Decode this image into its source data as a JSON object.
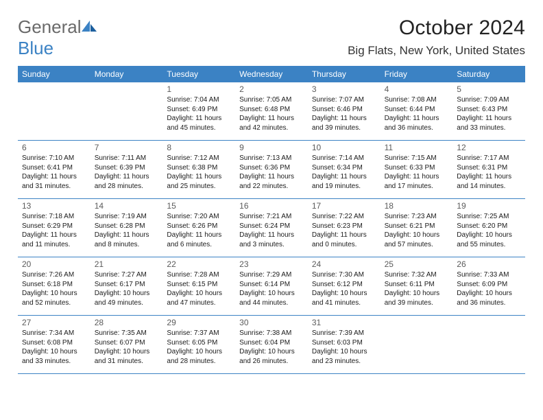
{
  "logo": {
    "text1": "General",
    "text2": "Blue"
  },
  "title": "October 2024",
  "location": "Big Flats, New York, United States",
  "colors": {
    "accent": "#3b82c4",
    "headerText": "#ffffff",
    "bodyText": "#1a1a1a",
    "dayNum": "#5a5a5a",
    "logoGray": "#6a6a6a"
  },
  "dayNames": [
    "Sunday",
    "Monday",
    "Tuesday",
    "Wednesday",
    "Thursday",
    "Friday",
    "Saturday"
  ],
  "weeks": [
    [
      null,
      null,
      {
        "n": "1",
        "sr": "7:04 AM",
        "ss": "6:49 PM",
        "dl": "11 hours and 45 minutes."
      },
      {
        "n": "2",
        "sr": "7:05 AM",
        "ss": "6:48 PM",
        "dl": "11 hours and 42 minutes."
      },
      {
        "n": "3",
        "sr": "7:07 AM",
        "ss": "6:46 PM",
        "dl": "11 hours and 39 minutes."
      },
      {
        "n": "4",
        "sr": "7:08 AM",
        "ss": "6:44 PM",
        "dl": "11 hours and 36 minutes."
      },
      {
        "n": "5",
        "sr": "7:09 AM",
        "ss": "6:43 PM",
        "dl": "11 hours and 33 minutes."
      }
    ],
    [
      {
        "n": "6",
        "sr": "7:10 AM",
        "ss": "6:41 PM",
        "dl": "11 hours and 31 minutes."
      },
      {
        "n": "7",
        "sr": "7:11 AM",
        "ss": "6:39 PM",
        "dl": "11 hours and 28 minutes."
      },
      {
        "n": "8",
        "sr": "7:12 AM",
        "ss": "6:38 PM",
        "dl": "11 hours and 25 minutes."
      },
      {
        "n": "9",
        "sr": "7:13 AM",
        "ss": "6:36 PM",
        "dl": "11 hours and 22 minutes."
      },
      {
        "n": "10",
        "sr": "7:14 AM",
        "ss": "6:34 PM",
        "dl": "11 hours and 19 minutes."
      },
      {
        "n": "11",
        "sr": "7:15 AM",
        "ss": "6:33 PM",
        "dl": "11 hours and 17 minutes."
      },
      {
        "n": "12",
        "sr": "7:17 AM",
        "ss": "6:31 PM",
        "dl": "11 hours and 14 minutes."
      }
    ],
    [
      {
        "n": "13",
        "sr": "7:18 AM",
        "ss": "6:29 PM",
        "dl": "11 hours and 11 minutes."
      },
      {
        "n": "14",
        "sr": "7:19 AM",
        "ss": "6:28 PM",
        "dl": "11 hours and 8 minutes."
      },
      {
        "n": "15",
        "sr": "7:20 AM",
        "ss": "6:26 PM",
        "dl": "11 hours and 6 minutes."
      },
      {
        "n": "16",
        "sr": "7:21 AM",
        "ss": "6:24 PM",
        "dl": "11 hours and 3 minutes."
      },
      {
        "n": "17",
        "sr": "7:22 AM",
        "ss": "6:23 PM",
        "dl": "11 hours and 0 minutes."
      },
      {
        "n": "18",
        "sr": "7:23 AM",
        "ss": "6:21 PM",
        "dl": "10 hours and 57 minutes."
      },
      {
        "n": "19",
        "sr": "7:25 AM",
        "ss": "6:20 PM",
        "dl": "10 hours and 55 minutes."
      }
    ],
    [
      {
        "n": "20",
        "sr": "7:26 AM",
        "ss": "6:18 PM",
        "dl": "10 hours and 52 minutes."
      },
      {
        "n": "21",
        "sr": "7:27 AM",
        "ss": "6:17 PM",
        "dl": "10 hours and 49 minutes."
      },
      {
        "n": "22",
        "sr": "7:28 AM",
        "ss": "6:15 PM",
        "dl": "10 hours and 47 minutes."
      },
      {
        "n": "23",
        "sr": "7:29 AM",
        "ss": "6:14 PM",
        "dl": "10 hours and 44 minutes."
      },
      {
        "n": "24",
        "sr": "7:30 AM",
        "ss": "6:12 PM",
        "dl": "10 hours and 41 minutes."
      },
      {
        "n": "25",
        "sr": "7:32 AM",
        "ss": "6:11 PM",
        "dl": "10 hours and 39 minutes."
      },
      {
        "n": "26",
        "sr": "7:33 AM",
        "ss": "6:09 PM",
        "dl": "10 hours and 36 minutes."
      }
    ],
    [
      {
        "n": "27",
        "sr": "7:34 AM",
        "ss": "6:08 PM",
        "dl": "10 hours and 33 minutes."
      },
      {
        "n": "28",
        "sr": "7:35 AM",
        "ss": "6:07 PM",
        "dl": "10 hours and 31 minutes."
      },
      {
        "n": "29",
        "sr": "7:37 AM",
        "ss": "6:05 PM",
        "dl": "10 hours and 28 minutes."
      },
      {
        "n": "30",
        "sr": "7:38 AM",
        "ss": "6:04 PM",
        "dl": "10 hours and 26 minutes."
      },
      {
        "n": "31",
        "sr": "7:39 AM",
        "ss": "6:03 PM",
        "dl": "10 hours and 23 minutes."
      },
      null,
      null
    ]
  ],
  "labels": {
    "sunrise": "Sunrise: ",
    "sunset": "Sunset: ",
    "daylight": "Daylight: "
  }
}
